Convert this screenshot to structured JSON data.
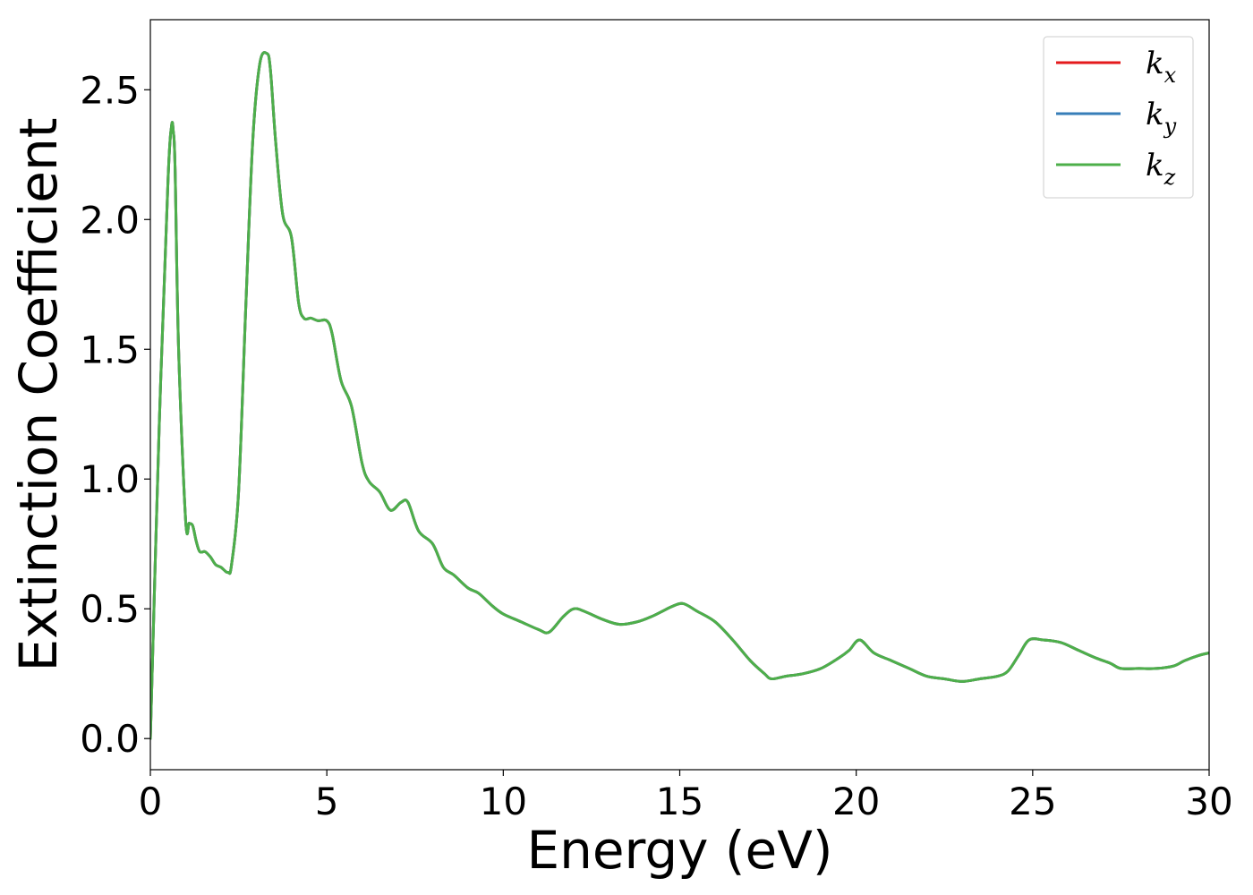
{
  "chart_data": {
    "type": "line",
    "title": "",
    "xlabel": "Energy (eV)",
    "ylabel": "Extinction Coefficient",
    "xlim": [
      0,
      30
    ],
    "ylim": [
      -0.12,
      2.77
    ],
    "xticks": [
      0,
      5,
      10,
      15,
      20,
      25,
      30
    ],
    "xtick_labels": [
      "0",
      "5",
      "10",
      "15",
      "20",
      "25",
      "30"
    ],
    "yticks": [
      0.0,
      0.5,
      1.0,
      1.5,
      2.0,
      2.5
    ],
    "ytick_labels": [
      "0.0",
      "0.5",
      "1.0",
      "1.5",
      "2.0",
      "2.5"
    ],
    "grid": false,
    "legend_position": "top-right",
    "series": [
      {
        "name": "k_x",
        "label_main": "k",
        "label_sub": "x",
        "color": "#e41a1c",
        "x": [
          0.0,
          0.25,
          0.5,
          0.6,
          0.65,
          0.7,
          0.8,
          1.0,
          1.1,
          1.2,
          1.3,
          1.4,
          1.55,
          1.7,
          1.85,
          2.0,
          2.2,
          2.3,
          2.5,
          2.7,
          2.9,
          3.1,
          3.3,
          3.4,
          3.55,
          3.75,
          4.0,
          4.2,
          4.35,
          4.55,
          4.75,
          5.0,
          5.15,
          5.4,
          5.7,
          6.0,
          6.2,
          6.5,
          6.8,
          7.1,
          7.3,
          7.6,
          8.0,
          8.3,
          8.6,
          9.0,
          9.3,
          9.7,
          10.0,
          10.5,
          11.0,
          11.3,
          11.7,
          12.0,
          12.3,
          12.8,
          13.3,
          13.8,
          14.2,
          14.5,
          14.8,
          15.1,
          15.5,
          16.0,
          16.5,
          17.0,
          17.4,
          17.6,
          18.0,
          18.5,
          19.0,
          19.5,
          19.8,
          20.1,
          20.5,
          21.0,
          21.5,
          22.0,
          22.5,
          23.0,
          23.5,
          24.0,
          24.3,
          24.6,
          24.9,
          25.3,
          25.8,
          26.3,
          26.8,
          27.2,
          27.5,
          28.0,
          28.5,
          29.0,
          29.3,
          29.7,
          30.0
        ],
        "y": [
          0.0,
          1.2,
          2.15,
          2.36,
          2.34,
          2.2,
          1.5,
          0.84,
          0.83,
          0.82,
          0.76,
          0.72,
          0.72,
          0.7,
          0.67,
          0.66,
          0.64,
          0.67,
          0.95,
          1.65,
          2.3,
          2.6,
          2.64,
          2.58,
          2.3,
          2.02,
          1.93,
          1.68,
          1.62,
          1.62,
          1.61,
          1.61,
          1.56,
          1.38,
          1.28,
          1.06,
          0.99,
          0.95,
          0.88,
          0.91,
          0.91,
          0.8,
          0.75,
          0.66,
          0.63,
          0.58,
          0.56,
          0.51,
          0.48,
          0.45,
          0.42,
          0.41,
          0.47,
          0.5,
          0.49,
          0.46,
          0.44,
          0.45,
          0.47,
          0.49,
          0.51,
          0.52,
          0.49,
          0.45,
          0.38,
          0.3,
          0.25,
          0.23,
          0.24,
          0.25,
          0.27,
          0.31,
          0.34,
          0.38,
          0.33,
          0.3,
          0.27,
          0.24,
          0.23,
          0.22,
          0.23,
          0.24,
          0.26,
          0.32,
          0.38,
          0.38,
          0.37,
          0.34,
          0.31,
          0.29,
          0.27,
          0.27,
          0.27,
          0.28,
          0.3,
          0.32,
          0.33
        ]
      },
      {
        "name": "k_y",
        "label_main": "k",
        "label_sub": "y",
        "color": "#377eb8",
        "x": [
          0.0,
          0.25,
          0.5,
          0.6,
          0.65,
          0.7,
          0.8,
          1.0,
          1.1,
          1.2,
          1.3,
          1.4,
          1.55,
          1.7,
          1.85,
          2.0,
          2.2,
          2.3,
          2.5,
          2.7,
          2.9,
          3.1,
          3.3,
          3.4,
          3.55,
          3.75,
          4.0,
          4.2,
          4.35,
          4.55,
          4.75,
          5.0,
          5.15,
          5.4,
          5.7,
          6.0,
          6.2,
          6.5,
          6.8,
          7.1,
          7.3,
          7.6,
          8.0,
          8.3,
          8.6,
          9.0,
          9.3,
          9.7,
          10.0,
          10.5,
          11.0,
          11.3,
          11.7,
          12.0,
          12.3,
          12.8,
          13.3,
          13.8,
          14.2,
          14.5,
          14.8,
          15.1,
          15.5,
          16.0,
          16.5,
          17.0,
          17.4,
          17.6,
          18.0,
          18.5,
          19.0,
          19.5,
          19.8,
          20.1,
          20.5,
          21.0,
          21.5,
          22.0,
          22.5,
          23.0,
          23.5,
          24.0,
          24.3,
          24.6,
          24.9,
          25.3,
          25.8,
          26.3,
          26.8,
          27.2,
          27.5,
          28.0,
          28.5,
          29.0,
          29.3,
          29.7,
          30.0
        ],
        "y": [
          0.0,
          1.2,
          2.15,
          2.36,
          2.34,
          2.2,
          1.5,
          0.84,
          0.83,
          0.82,
          0.76,
          0.72,
          0.72,
          0.7,
          0.67,
          0.66,
          0.64,
          0.67,
          0.95,
          1.65,
          2.3,
          2.6,
          2.64,
          2.58,
          2.3,
          2.02,
          1.93,
          1.68,
          1.62,
          1.62,
          1.61,
          1.61,
          1.56,
          1.38,
          1.28,
          1.06,
          0.99,
          0.95,
          0.88,
          0.91,
          0.91,
          0.8,
          0.75,
          0.66,
          0.63,
          0.58,
          0.56,
          0.51,
          0.48,
          0.45,
          0.42,
          0.41,
          0.47,
          0.5,
          0.49,
          0.46,
          0.44,
          0.45,
          0.47,
          0.49,
          0.51,
          0.52,
          0.49,
          0.45,
          0.38,
          0.3,
          0.25,
          0.23,
          0.24,
          0.25,
          0.27,
          0.31,
          0.34,
          0.38,
          0.33,
          0.3,
          0.27,
          0.24,
          0.23,
          0.22,
          0.23,
          0.24,
          0.26,
          0.32,
          0.38,
          0.38,
          0.37,
          0.34,
          0.31,
          0.29,
          0.27,
          0.27,
          0.27,
          0.28,
          0.3,
          0.32,
          0.33
        ]
      },
      {
        "name": "k_z",
        "label_main": "k",
        "label_sub": "z",
        "color": "#4daf4a",
        "x": [
          0.0,
          0.25,
          0.5,
          0.6,
          0.65,
          0.7,
          0.8,
          1.0,
          1.1,
          1.2,
          1.3,
          1.4,
          1.55,
          1.7,
          1.85,
          2.0,
          2.2,
          2.3,
          2.5,
          2.7,
          2.9,
          3.1,
          3.3,
          3.4,
          3.55,
          3.75,
          4.0,
          4.2,
          4.35,
          4.55,
          4.75,
          5.0,
          5.15,
          5.4,
          5.7,
          6.0,
          6.2,
          6.5,
          6.8,
          7.1,
          7.3,
          7.6,
          8.0,
          8.3,
          8.6,
          9.0,
          9.3,
          9.7,
          10.0,
          10.5,
          11.0,
          11.3,
          11.7,
          12.0,
          12.3,
          12.8,
          13.3,
          13.8,
          14.2,
          14.5,
          14.8,
          15.1,
          15.5,
          16.0,
          16.5,
          17.0,
          17.4,
          17.6,
          18.0,
          18.5,
          19.0,
          19.5,
          19.8,
          20.1,
          20.5,
          21.0,
          21.5,
          22.0,
          22.5,
          23.0,
          23.5,
          24.0,
          24.3,
          24.6,
          24.9,
          25.3,
          25.8,
          26.3,
          26.8,
          27.2,
          27.5,
          28.0,
          28.5,
          29.0,
          29.3,
          29.7,
          30.0
        ],
        "y": [
          0.0,
          1.2,
          2.15,
          2.36,
          2.34,
          2.2,
          1.5,
          0.84,
          0.83,
          0.82,
          0.76,
          0.72,
          0.72,
          0.7,
          0.67,
          0.66,
          0.64,
          0.67,
          0.95,
          1.65,
          2.3,
          2.6,
          2.64,
          2.58,
          2.3,
          2.02,
          1.93,
          1.68,
          1.62,
          1.62,
          1.61,
          1.61,
          1.56,
          1.38,
          1.28,
          1.06,
          0.99,
          0.95,
          0.88,
          0.91,
          0.91,
          0.8,
          0.75,
          0.66,
          0.63,
          0.58,
          0.56,
          0.51,
          0.48,
          0.45,
          0.42,
          0.41,
          0.47,
          0.5,
          0.49,
          0.46,
          0.44,
          0.45,
          0.47,
          0.49,
          0.51,
          0.52,
          0.49,
          0.45,
          0.38,
          0.3,
          0.25,
          0.23,
          0.24,
          0.25,
          0.27,
          0.31,
          0.34,
          0.38,
          0.33,
          0.3,
          0.27,
          0.24,
          0.23,
          0.22,
          0.23,
          0.24,
          0.26,
          0.32,
          0.38,
          0.38,
          0.37,
          0.34,
          0.31,
          0.29,
          0.27,
          0.27,
          0.27,
          0.28,
          0.3,
          0.32,
          0.33
        ]
      }
    ]
  }
}
